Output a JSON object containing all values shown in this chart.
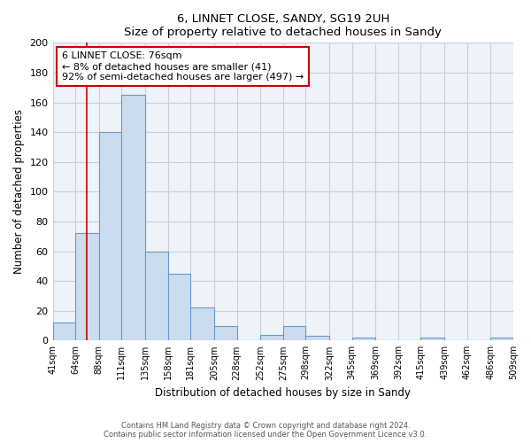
{
  "title": "6, LINNET CLOSE, SANDY, SG19 2UH",
  "subtitle": "Size of property relative to detached houses in Sandy",
  "xlabel": "Distribution of detached houses by size in Sandy",
  "ylabel": "Number of detached properties",
  "bar_edges": [
    41,
    64,
    88,
    111,
    135,
    158,
    181,
    205,
    228,
    252,
    275,
    298,
    322,
    345,
    369,
    392,
    415,
    439,
    462,
    486,
    509
  ],
  "bar_heights": [
    12,
    72,
    140,
    165,
    60,
    45,
    22,
    10,
    0,
    4,
    10,
    3,
    0,
    2,
    0,
    0,
    2,
    0,
    0,
    2
  ],
  "bar_color": "#ccdcef",
  "bar_edge_color": "#6699cc",
  "tick_labels": [
    "41sqm",
    "64sqm",
    "88sqm",
    "111sqm",
    "135sqm",
    "158sqm",
    "181sqm",
    "205sqm",
    "228sqm",
    "252sqm",
    "275sqm",
    "298sqm",
    "322sqm",
    "345sqm",
    "369sqm",
    "392sqm",
    "415sqm",
    "439sqm",
    "462sqm",
    "486sqm",
    "509sqm"
  ],
  "ylim": [
    0,
    200
  ],
  "yticks": [
    0,
    20,
    40,
    60,
    80,
    100,
    120,
    140,
    160,
    180,
    200
  ],
  "property_line_x": 76,
  "property_line_color": "#cc0000",
  "annotation_text": "6 LINNET CLOSE: 76sqm\n← 8% of detached houses are smaller (41)\n92% of semi-detached houses are larger (497) →",
  "annotation_box_color": "#ffffff",
  "annotation_box_edge_color": "#cc0000",
  "footer_text": "Contains HM Land Registry data © Crown copyright and database right 2024.\nContains public sector information licensed under the Open Government Licence v3.0.",
  "bg_color": "#ffffff",
  "plot_bg_color": "#eef2f9",
  "grid_color": "#ccccdd"
}
